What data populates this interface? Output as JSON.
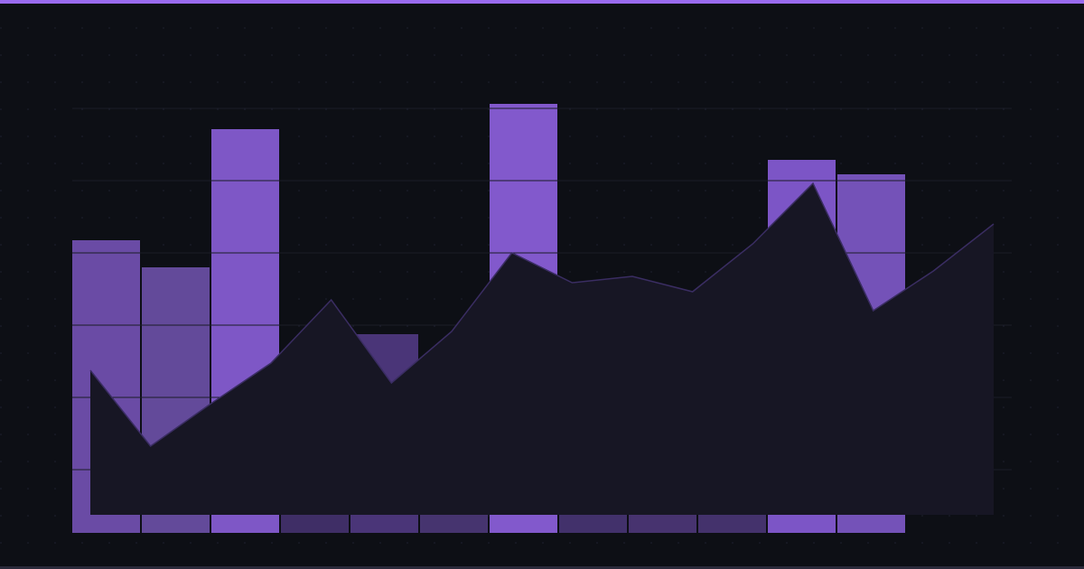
{
  "chart_data": [
    {
      "type": "bar",
      "values": [
        32.4,
        29.4,
        44.7,
        20,
        22,
        18,
        47.5,
        21,
        19,
        20,
        41.3,
        39.7
      ],
      "colors": [
        "#6a4ba5",
        "#634a9a",
        "#7e57c6",
        "#3f2e66",
        "#4a3578",
        "#46346f",
        "#8259cc",
        "#42316b",
        "#47336f",
        "#44326c",
        "#7c55c6",
        "#7452b8"
      ],
      "ylim": [
        0,
        48
      ],
      "yticks": [
        7,
        15,
        23,
        31,
        39,
        47
      ],
      "grid": true
    },
    {
      "type": "area",
      "values": [
        16.0,
        7.6,
        12.3,
        16.8,
        23.8,
        14.6,
        20.3,
        29.0,
        25.7,
        26.4,
        24.7,
        30.0,
        36.7,
        22.6,
        27.0,
        32.2
      ],
      "color": "#171624",
      "line_color": "#3a2d62",
      "ylim": [
        0,
        46
      ]
    }
  ]
}
